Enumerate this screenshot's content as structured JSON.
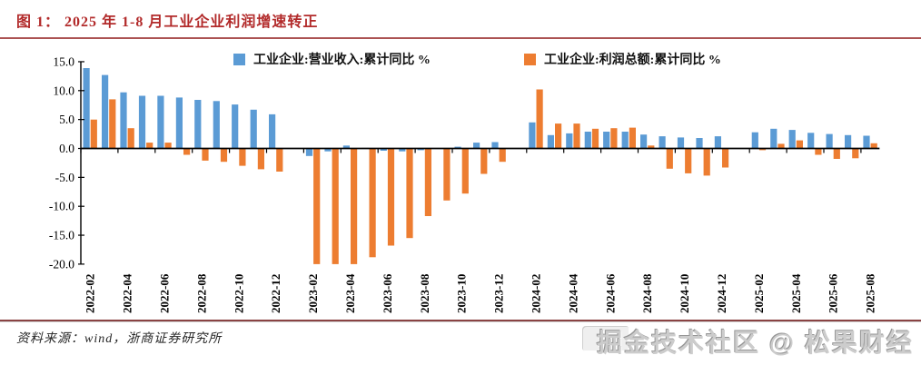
{
  "header": {
    "title": "图 1：  2025 年 1-8 月工业企业利润增速转正"
  },
  "colors": {
    "title_red": "#b22a2a",
    "rule_top": "#ab5252",
    "rule_bottom": "#8a4343",
    "revenue_blue": "#5B9BD5",
    "profit_orange": "#ED7D31",
    "axis_black": "#000000"
  },
  "chart_data": {
    "type": "bar",
    "title": "",
    "xlabel": "",
    "ylabel": "",
    "grid": false,
    "legend_position": "top",
    "ylim": [
      -20,
      15
    ],
    "yticks": [
      15.0,
      10.0,
      5.0,
      0.0,
      -5.0,
      -10.0,
      -15.0,
      -20.0
    ],
    "x": [
      "2022-02",
      "2022-03",
      "2022-04",
      "2022-05",
      "2022-06",
      "2022-07",
      "2022-08",
      "2022-09",
      "2022-10",
      "2022-11",
      "2022-12",
      "2023-02",
      "2023-03",
      "2023-04",
      "2023-05",
      "2023-06",
      "2023-07",
      "2023-08",
      "2023-09",
      "2023-10",
      "2023-11",
      "2023-12",
      "2024-02",
      "2024-03",
      "2024-04",
      "2024-05",
      "2024-06",
      "2024-07",
      "2024-08",
      "2024-09",
      "2024-10",
      "2024-11",
      "2024-12",
      "2025-02",
      "2025-03",
      "2025-04",
      "2025-05",
      "2025-06",
      "2025-07",
      "2025-08"
    ],
    "xtick_labels": [
      "2022-02",
      "2022-04",
      "2022-06",
      "2022-08",
      "2022-10",
      "2022-12",
      "2023-02",
      "2023-04",
      "2023-06",
      "2023-08",
      "2023-10",
      "2023-12",
      "2024-02",
      "2024-04",
      "2024-06",
      "2024-08",
      "2024-10",
      "2024-12",
      "2025-02",
      "2025-04",
      "2025-06",
      "2025-08"
    ],
    "series": [
      {
        "name": "工业企业:营业收入:累计同比 %",
        "color": "#5B9BD5",
        "values": [
          13.9,
          12.7,
          9.7,
          9.1,
          9.1,
          8.8,
          8.4,
          8.2,
          7.6,
          6.7,
          5.9,
          -1.3,
          -0.5,
          0.5,
          0.1,
          -0.4,
          -0.5,
          -0.3,
          0.0,
          0.3,
          1.0,
          1.1,
          4.5,
          2.3,
          2.6,
          2.9,
          2.9,
          2.9,
          2.4,
          2.1,
          1.9,
          1.8,
          2.1,
          2.8,
          3.4,
          3.2,
          2.7,
          2.5,
          2.3,
          2.2
        ]
      },
      {
        "name": "工业企业:利润总额:累计同比 %",
        "color": "#ED7D31",
        "values": [
          5.0,
          8.5,
          3.5,
          1.0,
          1.0,
          -1.1,
          -2.1,
          -2.3,
          -3.0,
          -3.6,
          -4.0,
          -22.9,
          -21.4,
          -20.6,
          -18.8,
          -16.8,
          -15.5,
          -11.7,
          -9.0,
          -7.8,
          -4.4,
          -2.3,
          10.2,
          4.3,
          4.3,
          3.4,
          3.5,
          3.6,
          0.5,
          -3.5,
          -4.3,
          -4.7,
          -3.3,
          -0.3,
          0.8,
          1.4,
          -1.1,
          -1.8,
          -1.7,
          0.9
        ]
      }
    ]
  },
  "footer": {
    "source": "资料来源：wind，浙商证券研究所"
  },
  "watermark": {
    "text": "掘金技术社区 @ 松果财经"
  }
}
